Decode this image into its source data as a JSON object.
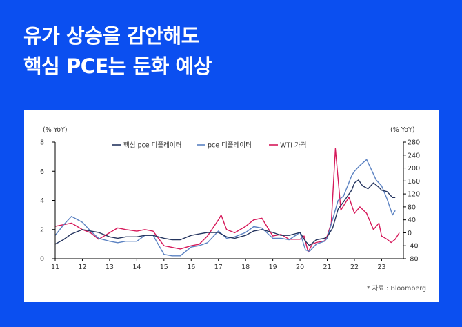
{
  "headline": {
    "line1": "유가 상승을 감안해도",
    "line2": "핵심 PCE는 둔화 예상"
  },
  "source": "* 자료 : Bloomberg",
  "colors": {
    "background": "#0b4ff0",
    "core_pce": "#25355f",
    "pce": "#5b82c2",
    "wti": "#d6195a"
  },
  "chart_data": {
    "type": "line",
    "x_tick_labels": [
      "11",
      "12",
      "13",
      "14",
      "15",
      "16",
      "17",
      "18",
      "19",
      "20",
      "21",
      "22",
      "23"
    ],
    "x_range": [
      2011.0,
      2023.8
    ],
    "left_axis": {
      "unit_label": "(% YoY)",
      "ylim": [
        0,
        8
      ],
      "ticks": [
        0,
        2,
        4,
        6,
        8
      ]
    },
    "right_axis": {
      "unit_label": "(% YoY)",
      "ylim": [
        -80,
        280
      ],
      "ticks": [
        -80,
        -40,
        0,
        40,
        80,
        120,
        160,
        200,
        240,
        280
      ]
    },
    "legend": [
      "핵심 pce 디플레이터",
      "pce 디플레이터",
      "WTI 가격"
    ],
    "series": [
      {
        "name": "핵심 pce 디플레이터",
        "axis": "left",
        "x": [
          2011.0,
          2011.3,
          2011.6,
          2012.0,
          2012.3,
          2012.6,
          2013.0,
          2013.3,
          2013.6,
          2014.0,
          2014.3,
          2014.6,
          2015.0,
          2015.3,
          2015.6,
          2016.0,
          2016.3,
          2016.6,
          2017.0,
          2017.3,
          2017.6,
          2018.0,
          2018.3,
          2018.6,
          2019.0,
          2019.3,
          2019.6,
          2020.0,
          2020.2,
          2020.35,
          2020.6,
          2020.9,
          2021.0,
          2021.2,
          2021.4,
          2021.6,
          2021.9,
          2022.0,
          2022.15,
          2022.3,
          2022.5,
          2022.7,
          2022.9,
          2023.0,
          2023.2,
          2023.4,
          2023.5
        ],
        "y": [
          1.0,
          1.3,
          1.7,
          2.0,
          1.9,
          1.8,
          1.5,
          1.4,
          1.5,
          1.5,
          1.6,
          1.6,
          1.4,
          1.3,
          1.3,
          1.6,
          1.7,
          1.8,
          1.8,
          1.5,
          1.4,
          1.6,
          1.9,
          2.0,
          1.8,
          1.6,
          1.6,
          1.8,
          1.2,
          0.9,
          1.3,
          1.4,
          1.5,
          2.1,
          3.4,
          3.9,
          4.7,
          5.2,
          5.4,
          5.0,
          4.8,
          5.2,
          4.9,
          4.7,
          4.6,
          4.2,
          4.2
        ]
      },
      {
        "name": "pce 디플레이터",
        "axis": "left",
        "x": [
          2011.0,
          2011.3,
          2011.6,
          2012.0,
          2012.3,
          2012.6,
          2013.0,
          2013.3,
          2013.6,
          2014.0,
          2014.3,
          2014.6,
          2015.0,
          2015.3,
          2015.6,
          2016.0,
          2016.3,
          2016.6,
          2017.0,
          2017.3,
          2017.6,
          2018.0,
          2018.3,
          2018.6,
          2019.0,
          2019.3,
          2019.6,
          2020.0,
          2020.2,
          2020.35,
          2020.6,
          2020.9,
          2021.0,
          2021.2,
          2021.4,
          2021.6,
          2021.9,
          2022.0,
          2022.2,
          2022.45,
          2022.6,
          2022.8,
          2023.0,
          2023.2,
          2023.4,
          2023.5
        ],
        "y": [
          1.6,
          2.3,
          2.9,
          2.5,
          1.9,
          1.4,
          1.2,
          1.1,
          1.2,
          1.2,
          1.6,
          1.6,
          0.3,
          0.2,
          0.2,
          0.8,
          0.9,
          1.1,
          1.9,
          1.4,
          1.5,
          1.8,
          2.2,
          2.1,
          1.4,
          1.4,
          1.3,
          1.8,
          0.6,
          0.5,
          1.0,
          1.2,
          1.4,
          2.7,
          4.0,
          4.3,
          5.7,
          6.0,
          6.4,
          6.8,
          6.2,
          5.4,
          5.0,
          4.1,
          3.0,
          3.3
        ]
      },
      {
        "name": "WTI 가격",
        "axis": "right",
        "x": [
          2011.0,
          2011.3,
          2011.6,
          2012.0,
          2012.3,
          2012.6,
          2013.0,
          2013.3,
          2013.6,
          2014.0,
          2014.3,
          2014.6,
          2015.0,
          2015.3,
          2015.6,
          2016.0,
          2016.3,
          2016.6,
          2017.0,
          2017.1,
          2017.3,
          2017.6,
          2018.0,
          2018.3,
          2018.6,
          2019.0,
          2019.3,
          2019.6,
          2020.0,
          2020.15,
          2020.3,
          2020.45,
          2020.6,
          2020.9,
          2021.0,
          2021.15,
          2021.3,
          2021.5,
          2021.8,
          2022.0,
          2022.2,
          2022.45,
          2022.7,
          2022.9,
          2023.0,
          2023.2,
          2023.35,
          2023.5,
          2023.65
        ],
        "y": [
          20,
          25,
          30,
          10,
          0,
          -20,
          0,
          15,
          10,
          5,
          10,
          5,
          -40,
          -45,
          -50,
          -40,
          -35,
          -10,
          40,
          55,
          10,
          0,
          20,
          40,
          45,
          -10,
          -5,
          -20,
          -20,
          -10,
          -60,
          -35,
          -30,
          -25,
          -10,
          30,
          260,
          70,
          110,
          60,
          80,
          60,
          10,
          30,
          -10,
          -20,
          -30,
          -20,
          0
        ]
      }
    ]
  }
}
